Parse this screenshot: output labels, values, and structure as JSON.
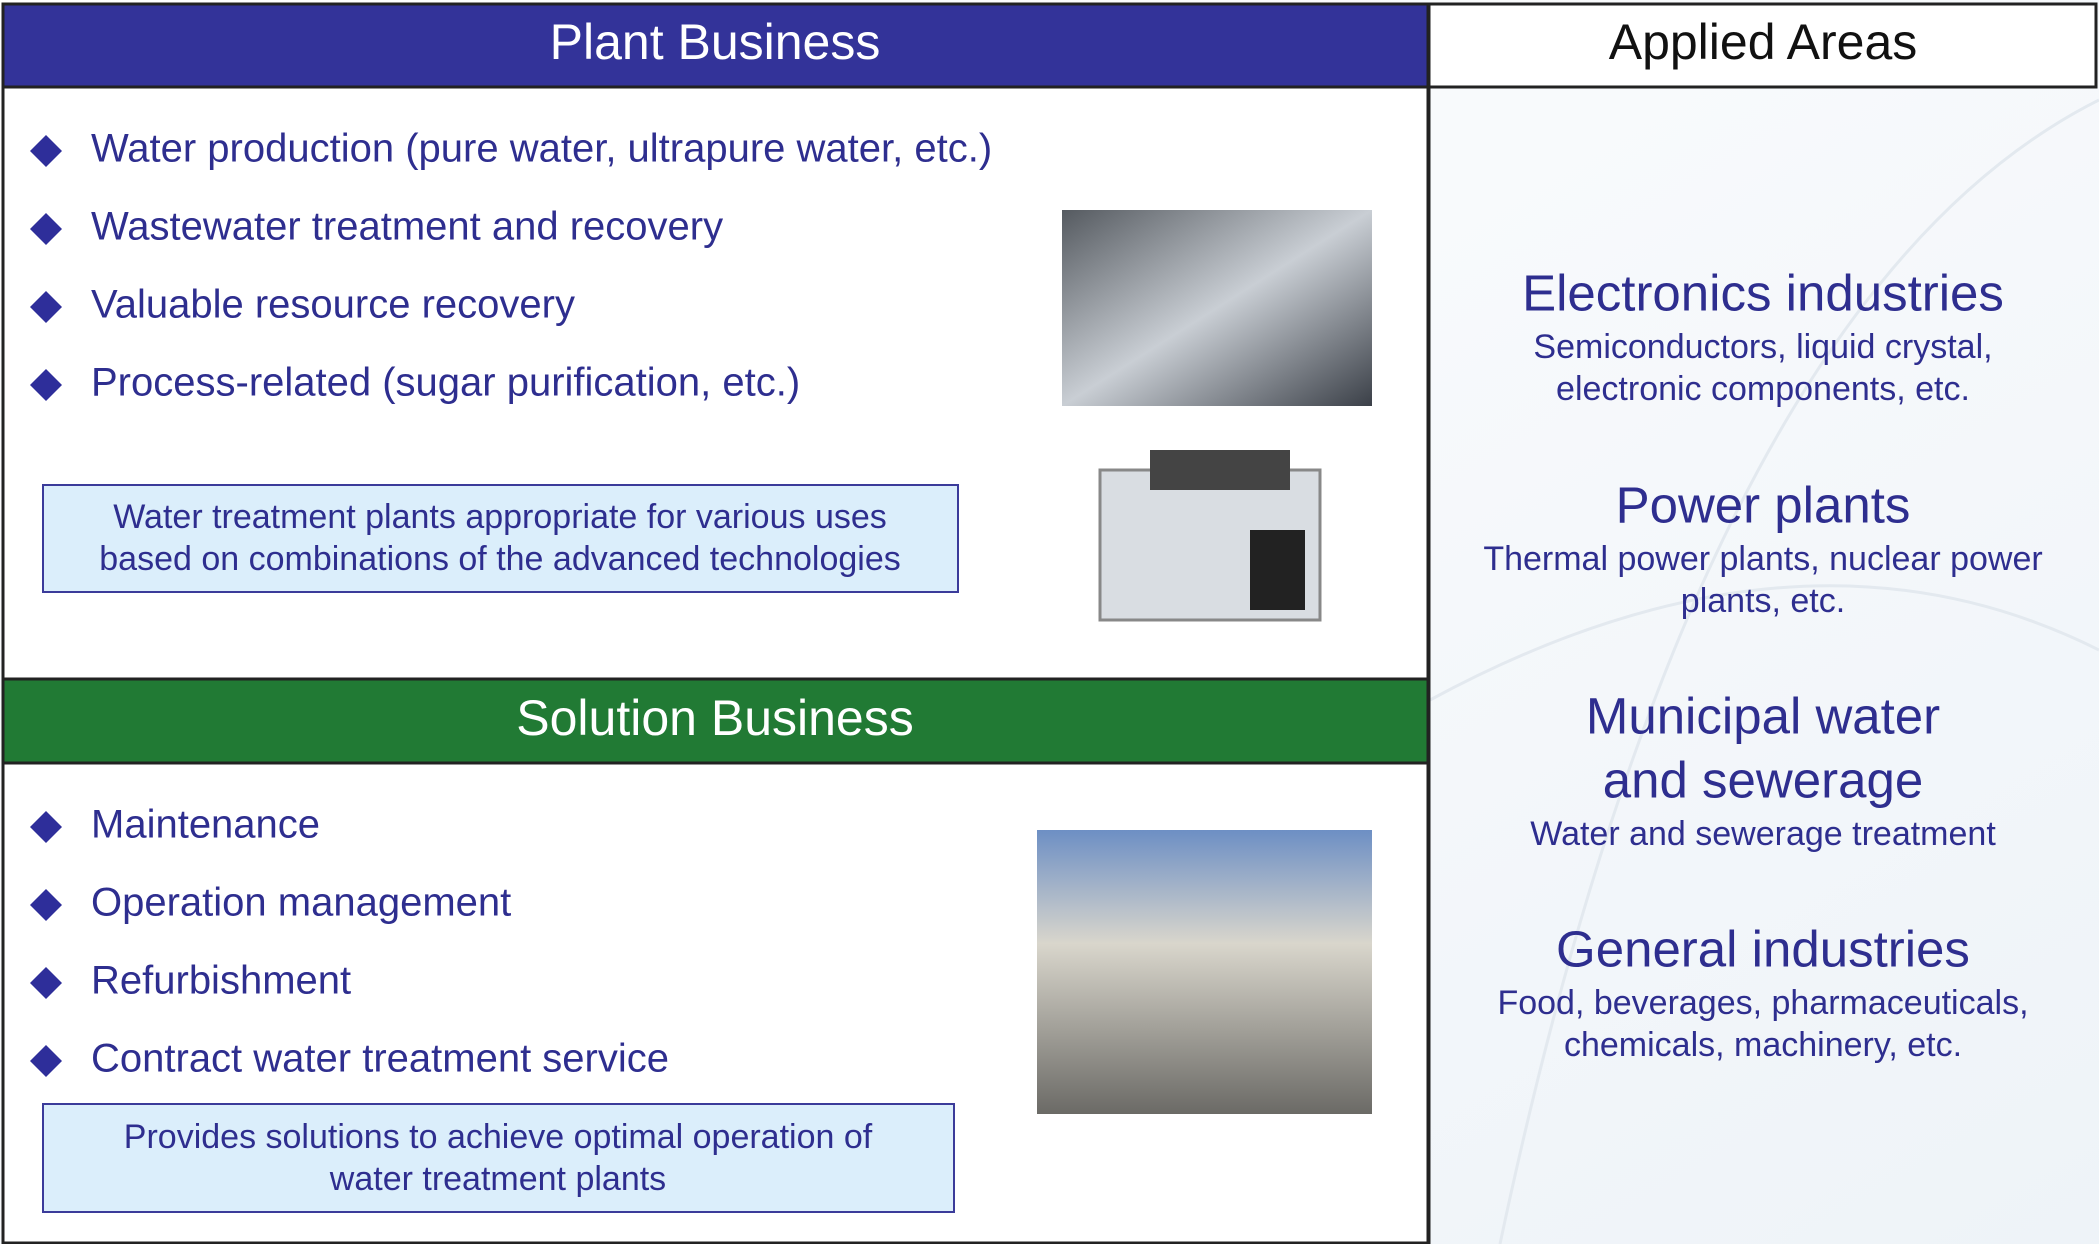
{
  "plant_business": {
    "title": "Plant Business",
    "items": [
      "Water production (pure water, ultrapure water, etc.)",
      "Wastewater treatment and recovery",
      "Valuable resource recovery",
      "Process-related (sugar purification, etc.)"
    ],
    "note_lines": [
      "Water treatment plants appropriate for various uses",
      "based on combinations of the advanced technologies"
    ]
  },
  "solution_business": {
    "title": "Solution Business",
    "items": [
      "Maintenance",
      "Operation management",
      "Refurbishment",
      "Contract water treatment service"
    ],
    "note_lines": [
      "Provides solutions to achieve optimal operation of",
      "water treatment plants"
    ]
  },
  "applied_areas": {
    "title": "Applied Areas",
    "areas": [
      {
        "title_lines": [
          "Electronics industries"
        ],
        "desc_lines": [
          "Semiconductors, liquid crystal,",
          "electronic components, etc."
        ]
      },
      {
        "title_lines": [
          "Power plants"
        ],
        "desc_lines": [
          "Thermal power plants, nuclear power",
          "plants, etc."
        ]
      },
      {
        "title_lines": [
          "Municipal water",
          "and sewerage"
        ],
        "desc_lines": [
          "Water and sewerage treatment"
        ]
      },
      {
        "title_lines": [
          "General industries"
        ],
        "desc_lines": [
          "Food, beverages, pharmaceuticals,",
          "chemicals, machinery, etc."
        ]
      }
    ]
  }
}
